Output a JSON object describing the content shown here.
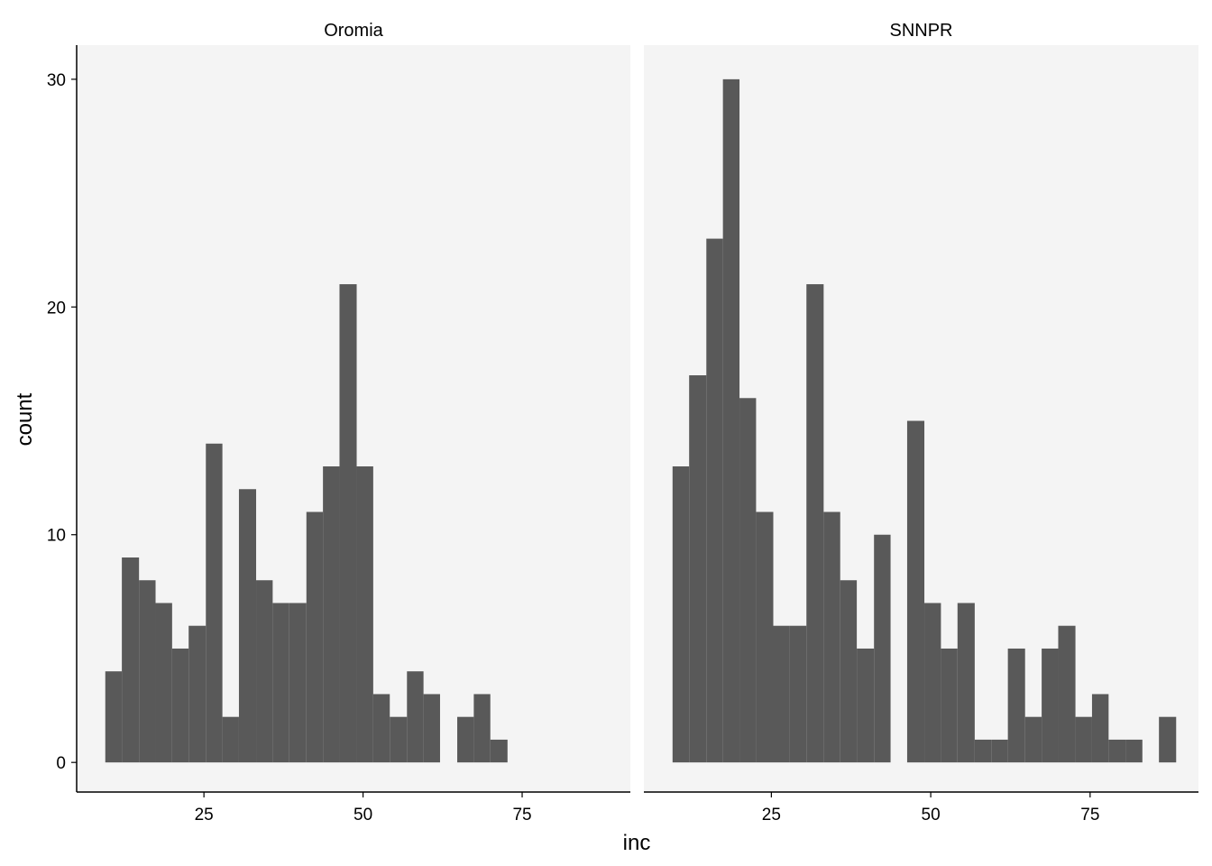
{
  "chart_data": {
    "type": "bar",
    "xlabel": "inc",
    "ylabel": "count",
    "xlim": [
      5,
      92
    ],
    "ylim": [
      -1.3,
      31.5
    ],
    "x_ticks": [
      "25",
      "50",
      "75"
    ],
    "y_ticks": [
      "0",
      "10",
      "20",
      "30"
    ],
    "grid": false,
    "legend": "none",
    "colors": {
      "bar": "#595959",
      "panel": "#f4f4f4",
      "axis": "#000000"
    },
    "panels": [
      {
        "name": "Oromia",
        "bins": [
          {
            "x0": 9.5,
            "x1": 12.1,
            "count": 4
          },
          {
            "x0": 12.1,
            "x1": 14.8,
            "count": 9
          },
          {
            "x0": 14.8,
            "x1": 17.4,
            "count": 8
          },
          {
            "x0": 17.4,
            "x1": 20.0,
            "count": 7
          },
          {
            "x0": 20.0,
            "x1": 22.6,
            "count": 5
          },
          {
            "x0": 22.6,
            "x1": 25.3,
            "count": 6
          },
          {
            "x0": 25.3,
            "x1": 27.9,
            "count": 14
          },
          {
            "x0": 27.9,
            "x1": 30.5,
            "count": 2
          },
          {
            "x0": 30.5,
            "x1": 33.2,
            "count": 12
          },
          {
            "x0": 33.2,
            "x1": 35.8,
            "count": 8
          },
          {
            "x0": 35.8,
            "x1": 38.4,
            "count": 7
          },
          {
            "x0": 38.4,
            "x1": 41.1,
            "count": 7
          },
          {
            "x0": 41.1,
            "x1": 43.7,
            "count": 11
          },
          {
            "x0": 43.7,
            "x1": 46.3,
            "count": 13
          },
          {
            "x0": 46.3,
            "x1": 49.0,
            "count": 21
          },
          {
            "x0": 49.0,
            "x1": 51.6,
            "count": 13
          },
          {
            "x0": 51.6,
            "x1": 54.2,
            "count": 3
          },
          {
            "x0": 54.2,
            "x1": 56.9,
            "count": 2
          },
          {
            "x0": 56.9,
            "x1": 59.5,
            "count": 4
          },
          {
            "x0": 59.5,
            "x1": 62.1,
            "count": 3
          },
          {
            "x0": 62.1,
            "x1": 64.8,
            "count": 0
          },
          {
            "x0": 64.8,
            "x1": 67.4,
            "count": 2
          },
          {
            "x0": 67.4,
            "x1": 70.0,
            "count": 3
          },
          {
            "x0": 70.0,
            "x1": 72.7,
            "count": 1
          }
        ]
      },
      {
        "name": "SNNPR",
        "bins": [
          {
            "x0": 9.5,
            "x1": 12.1,
            "count": 13
          },
          {
            "x0": 12.1,
            "x1": 14.8,
            "count": 17
          },
          {
            "x0": 14.8,
            "x1": 17.4,
            "count": 23
          },
          {
            "x0": 17.4,
            "x1": 20.0,
            "count": 30
          },
          {
            "x0": 20.0,
            "x1": 22.6,
            "count": 16
          },
          {
            "x0": 22.6,
            "x1": 25.3,
            "count": 11
          },
          {
            "x0": 25.3,
            "x1": 27.9,
            "count": 6
          },
          {
            "x0": 27.9,
            "x1": 30.5,
            "count": 6
          },
          {
            "x0": 30.5,
            "x1": 33.2,
            "count": 21
          },
          {
            "x0": 33.2,
            "x1": 35.8,
            "count": 11
          },
          {
            "x0": 35.8,
            "x1": 38.4,
            "count": 8
          },
          {
            "x0": 38.4,
            "x1": 41.1,
            "count": 5
          },
          {
            "x0": 41.1,
            "x1": 43.7,
            "count": 10
          },
          {
            "x0": 43.7,
            "x1": 46.3,
            "count": 0
          },
          {
            "x0": 46.3,
            "x1": 49.0,
            "count": 15
          },
          {
            "x0": 49.0,
            "x1": 51.6,
            "count": 7
          },
          {
            "x0": 51.6,
            "x1": 54.2,
            "count": 5
          },
          {
            "x0": 54.2,
            "x1": 56.9,
            "count": 7
          },
          {
            "x0": 56.9,
            "x1": 59.5,
            "count": 1
          },
          {
            "x0": 59.5,
            "x1": 62.1,
            "count": 1
          },
          {
            "x0": 62.1,
            "x1": 64.8,
            "count": 5
          },
          {
            "x0": 64.8,
            "x1": 67.4,
            "count": 2
          },
          {
            "x0": 67.4,
            "x1": 70.0,
            "count": 5
          },
          {
            "x0": 70.0,
            "x1": 72.7,
            "count": 6
          },
          {
            "x0": 72.7,
            "x1": 75.3,
            "count": 2
          },
          {
            "x0": 75.3,
            "x1": 77.9,
            "count": 3
          },
          {
            "x0": 77.9,
            "x1": 80.6,
            "count": 1
          },
          {
            "x0": 80.6,
            "x1": 83.2,
            "count": 1
          },
          {
            "x0": 83.2,
            "x1": 85.8,
            "count": 0
          },
          {
            "x0": 85.8,
            "x1": 88.5,
            "count": 2
          }
        ]
      }
    ]
  }
}
